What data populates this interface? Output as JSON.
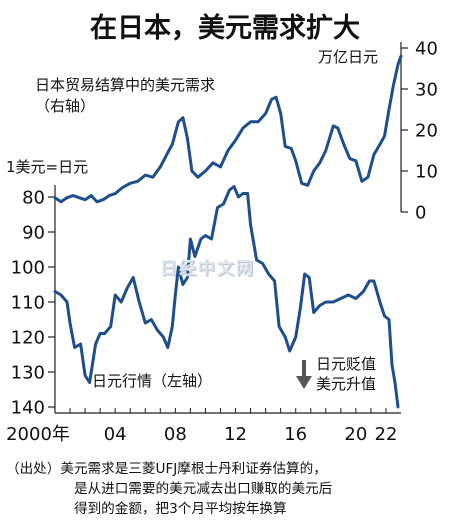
{
  "title": "在日本，美元需求扩大",
  "watermark": "日经中文网",
  "source_note": [
    "（出处）美元需求是三菱UFJ摩根士丹利证券估算的，",
    "是从进口需要的美元减去出口赚取的美元后",
    "得到的金额，把3个月平均按年换算"
  ],
  "chart_data": {
    "type": "line",
    "x_axis": {
      "tick_labels": [
        "2000年",
        "04",
        "08",
        "12",
        "16",
        "20",
        "22"
      ],
      "tick_years": [
        2000,
        2004,
        2008,
        2012,
        2016,
        2020,
        2022
      ],
      "range": [
        2000,
        2023
      ]
    },
    "left_axis": {
      "unit_label": "1美元=日元",
      "ticks": [
        80,
        90,
        100,
        110,
        120,
        130,
        140
      ],
      "range": [
        80,
        140
      ],
      "inverted": true
    },
    "right_axis": {
      "unit_label": "万亿日元",
      "ticks": [
        0,
        10,
        20,
        30,
        40
      ],
      "range": [
        0,
        40
      ]
    },
    "annotation_arrow": {
      "direction": "down",
      "lines": [
        "日元贬值",
        "美元升值"
      ]
    },
    "series": [
      {
        "name": "日本贸易结算中的美元需求",
        "sub_label": "（右轴）",
        "axis": "right",
        "color": "#1f4e8c",
        "points": [
          [
            2000.0,
            3.5
          ],
          [
            2000.4,
            2.5
          ],
          [
            2000.8,
            3.5
          ],
          [
            2001.2,
            4.0
          ],
          [
            2001.6,
            3.5
          ],
          [
            2002.0,
            3.0
          ],
          [
            2002.4,
            4.0
          ],
          [
            2002.8,
            2.5
          ],
          [
            2003.2,
            3.0
          ],
          [
            2003.6,
            4.0
          ],
          [
            2004.0,
            4.5
          ],
          [
            2004.5,
            6.0
          ],
          [
            2005.0,
            7.0
          ],
          [
            2005.5,
            7.5
          ],
          [
            2006.0,
            9.0
          ],
          [
            2006.5,
            8.5
          ],
          [
            2007.0,
            11.0
          ],
          [
            2007.5,
            14.5
          ],
          [
            2007.8,
            16.5
          ],
          [
            2008.2,
            22.0
          ],
          [
            2008.5,
            23.0
          ],
          [
            2008.8,
            18.0
          ],
          [
            2009.1,
            10.0
          ],
          [
            2009.5,
            8.5
          ],
          [
            2010.0,
            10.0
          ],
          [
            2010.5,
            12.0
          ],
          [
            2011.0,
            11.0
          ],
          [
            2011.5,
            15.0
          ],
          [
            2012.0,
            17.5
          ],
          [
            2012.5,
            20.5
          ],
          [
            2013.0,
            22.0
          ],
          [
            2013.5,
            22.0
          ],
          [
            2014.0,
            24.0
          ],
          [
            2014.4,
            27.5
          ],
          [
            2014.7,
            28.0
          ],
          [
            2015.0,
            24.0
          ],
          [
            2015.3,
            16.0
          ],
          [
            2015.7,
            15.5
          ],
          [
            2016.0,
            12.5
          ],
          [
            2016.4,
            7.0
          ],
          [
            2016.8,
            6.5
          ],
          [
            2017.2,
            10.0
          ],
          [
            2017.6,
            12.0
          ],
          [
            2018.0,
            15.0
          ],
          [
            2018.5,
            21.0
          ],
          [
            2018.8,
            20.5
          ],
          [
            2019.2,
            16.5
          ],
          [
            2019.6,
            13.0
          ],
          [
            2020.0,
            12.5
          ],
          [
            2020.4,
            7.5
          ],
          [
            2020.8,
            8.5
          ],
          [
            2021.2,
            14.0
          ],
          [
            2021.6,
            16.5
          ],
          [
            2021.9,
            18.5
          ],
          [
            2022.2,
            25.0
          ],
          [
            2022.5,
            31.0
          ],
          [
            2022.8,
            36.0
          ],
          [
            2023.0,
            38.0
          ]
        ]
      },
      {
        "name": "日元行情",
        "sub_label": "（左轴）",
        "axis": "left",
        "color": "#1f4e8c",
        "points": [
          [
            2000.0,
            107
          ],
          [
            2000.4,
            108
          ],
          [
            2000.8,
            110
          ],
          [
            2001.0,
            116
          ],
          [
            2001.3,
            123
          ],
          [
            2001.7,
            122
          ],
          [
            2002.0,
            131
          ],
          [
            2002.3,
            133
          ],
          [
            2002.7,
            122
          ],
          [
            2003.0,
            119
          ],
          [
            2003.3,
            119
          ],
          [
            2003.7,
            117
          ],
          [
            2004.0,
            108
          ],
          [
            2004.4,
            110
          ],
          [
            2004.8,
            106
          ],
          [
            2005.2,
            103
          ],
          [
            2005.6,
            110
          ],
          [
            2006.0,
            116
          ],
          [
            2006.4,
            115
          ],
          [
            2006.8,
            118
          ],
          [
            2007.2,
            120
          ],
          [
            2007.5,
            123
          ],
          [
            2007.8,
            117
          ],
          [
            2008.0,
            108
          ],
          [
            2008.2,
            100
          ],
          [
            2008.5,
            105
          ],
          [
            2008.8,
            103
          ],
          [
            2009.0,
            92
          ],
          [
            2009.3,
            97
          ],
          [
            2009.7,
            92
          ],
          [
            2010.0,
            91
          ],
          [
            2010.4,
            92
          ],
          [
            2010.8,
            83
          ],
          [
            2011.2,
            82
          ],
          [
            2011.6,
            78
          ],
          [
            2011.9,
            77
          ],
          [
            2012.2,
            80
          ],
          [
            2012.5,
            79
          ],
          [
            2012.8,
            79
          ],
          [
            2013.0,
            88
          ],
          [
            2013.4,
            98
          ],
          [
            2013.8,
            99
          ],
          [
            2014.2,
            102
          ],
          [
            2014.6,
            104
          ],
          [
            2014.9,
            117
          ],
          [
            2015.3,
            120
          ],
          [
            2015.6,
            124
          ],
          [
            2016.0,
            120
          ],
          [
            2016.3,
            112
          ],
          [
            2016.6,
            102
          ],
          [
            2016.9,
            103
          ],
          [
            2017.2,
            113
          ],
          [
            2017.6,
            111
          ],
          [
            2018.0,
            110
          ],
          [
            2018.5,
            110
          ],
          [
            2019.0,
            109
          ],
          [
            2019.5,
            108
          ],
          [
            2020.0,
            109
          ],
          [
            2020.5,
            107
          ],
          [
            2020.9,
            104
          ],
          [
            2021.2,
            104
          ],
          [
            2021.6,
            110
          ],
          [
            2021.9,
            114
          ],
          [
            2022.2,
            115
          ],
          [
            2022.4,
            128
          ],
          [
            2022.6,
            133
          ],
          [
            2022.8,
            140
          ]
        ]
      }
    ]
  }
}
